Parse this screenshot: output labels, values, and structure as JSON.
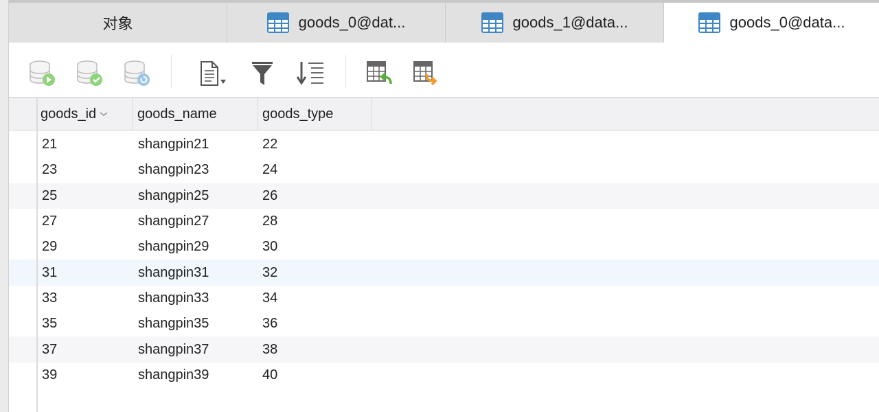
{
  "tabs": [
    {
      "label": "对象",
      "icon": null,
      "active": false
    },
    {
      "label": "goods_0@dat...",
      "icon": "table-icon",
      "active": false
    },
    {
      "label": "goods_1@data...",
      "icon": "table-icon",
      "active": false
    },
    {
      "label": "goods_0@data...",
      "icon": "table-icon",
      "active": true
    }
  ],
  "toolbar": {
    "buttons": [
      "begin-transaction-icon",
      "commit-icon",
      "rollback-icon",
      "text-view-icon",
      "filter-icon",
      "sort-icon",
      "import-icon",
      "export-icon"
    ]
  },
  "colors": {
    "accent": "#3f86c5",
    "green": "#6cc04a",
    "orange": "#f09a2a",
    "blue": "#7ab3dc"
  },
  "table": {
    "columns": [
      "goods_id",
      "goods_name",
      "goods_type"
    ],
    "rows": [
      [
        "21",
        "shangpin21",
        "22"
      ],
      [
        "23",
        "shangpin23",
        "24"
      ],
      [
        "25",
        "shangpin25",
        "26"
      ],
      [
        "27",
        "shangpin27",
        "28"
      ],
      [
        "29",
        "shangpin29",
        "30"
      ],
      [
        "31",
        "shangpin31",
        "32"
      ],
      [
        "33",
        "shangpin33",
        "34"
      ],
      [
        "35",
        "shangpin35",
        "36"
      ],
      [
        "37",
        "shangpin37",
        "38"
      ],
      [
        "39",
        "shangpin39",
        "40"
      ]
    ]
  }
}
